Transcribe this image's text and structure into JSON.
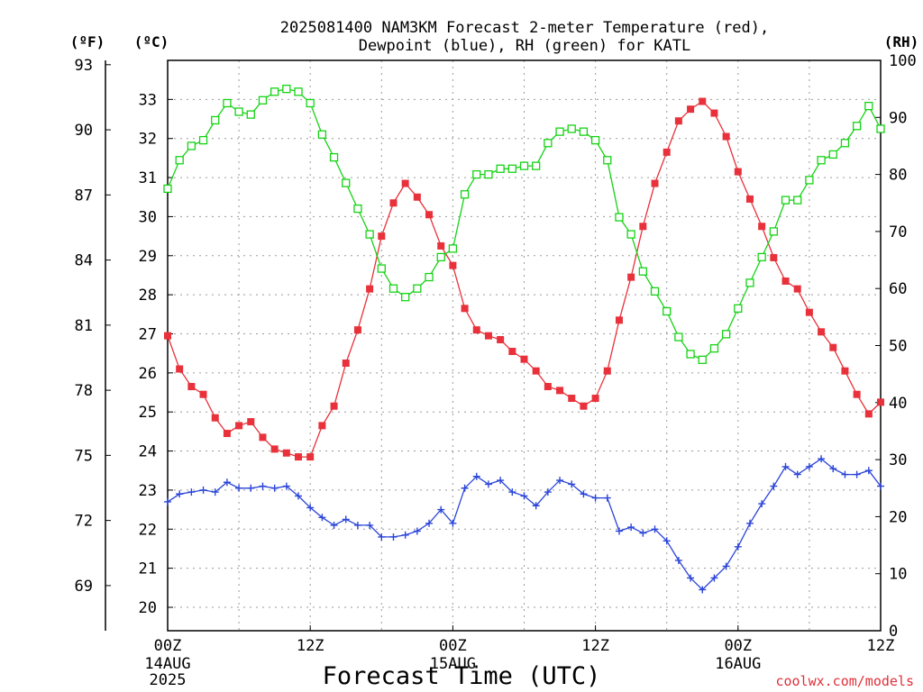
{
  "chart_data": {
    "type": "line",
    "title_line1": "2025081400 NAM3KM Forecast 2-meter Temperature (red),",
    "title_line2": "Dewpoint (blue), RH (green) for KATL",
    "xlabel": "Forecast Time (UTC)",
    "credit": "coolwx.com/models",
    "left_unit_f": "(ºF)",
    "left_unit_c": "(ºC)",
    "right_unit": "(RH)",
    "x_range_hours": [
      0,
      60
    ],
    "celsius_range": [
      19.4,
      34.0
    ],
    "rh_range": [
      0,
      100
    ],
    "fahrenheit_ticks": [
      "93",
      "90",
      "87",
      "84",
      "81",
      "78",
      "75",
      "72",
      "69"
    ],
    "fahrenheit_tick_values": [
      93,
      90,
      87,
      84,
      81,
      78,
      75,
      72,
      69
    ],
    "celsius_ticks": [
      "33",
      "32",
      "31",
      "30",
      "29",
      "28",
      "27",
      "26",
      "25",
      "24",
      "23",
      "22",
      "21",
      "20"
    ],
    "celsius_tick_values": [
      33,
      32,
      31,
      30,
      29,
      28,
      27,
      26,
      25,
      24,
      23,
      22,
      21,
      20
    ],
    "rh_ticks": [
      "100",
      "90",
      "80",
      "70",
      "60",
      "50",
      "40",
      "30",
      "20",
      "10",
      "0"
    ],
    "rh_tick_values": [
      100,
      90,
      80,
      70,
      60,
      50,
      40,
      30,
      20,
      10,
      0
    ],
    "x_ticks": [
      {
        "hour": 0,
        "line1": "00Z",
        "line2": "14AUG",
        "line3": "2025"
      },
      {
        "hour": 12,
        "line1": "12Z",
        "line2": "",
        "line3": ""
      },
      {
        "hour": 24,
        "line1": "00Z",
        "line2": "15AUG",
        "line3": ""
      },
      {
        "hour": 36,
        "line1": "12Z",
        "line2": "",
        "line3": ""
      },
      {
        "hour": 48,
        "line1": "00Z",
        "line2": "16AUG",
        "line3": ""
      },
      {
        "hour": 60,
        "line1": "12Z",
        "line2": "",
        "line3": ""
      }
    ],
    "series": [
      {
        "name": "Temperature",
        "axis": "celsius",
        "color": "#e8313a",
        "marker": "filled-square",
        "values": [
          26.95,
          26.1,
          25.65,
          25.45,
          24.85,
          24.45,
          24.65,
          24.75,
          24.35,
          24.05,
          23.95,
          23.85,
          23.85,
          24.65,
          25.15,
          26.25,
          27.1,
          28.15,
          29.5,
          30.35,
          30.85,
          30.5,
          30.05,
          29.25,
          28.75,
          27.65,
          27.1,
          26.95,
          26.85,
          26.55,
          26.35,
          26.05,
          25.65,
          25.55,
          25.35,
          25.15,
          25.35,
          26.05,
          27.35,
          28.45,
          29.75,
          30.85,
          31.65,
          32.45,
          32.75,
          32.95,
          32.65,
          32.05,
          31.15,
          30.45,
          29.75,
          28.95,
          28.35,
          28.15,
          27.55,
          27.05,
          26.65,
          26.05,
          25.45,
          24.95,
          25.25
        ]
      },
      {
        "name": "Dewpoint",
        "axis": "celsius",
        "color": "#2b45d8",
        "marker": "plus",
        "values": [
          22.7,
          22.9,
          22.95,
          23.0,
          22.95,
          23.2,
          23.05,
          23.05,
          23.1,
          23.05,
          23.1,
          22.85,
          22.55,
          22.3,
          22.1,
          22.25,
          22.1,
          22.1,
          21.8,
          21.8,
          21.85,
          21.95,
          22.15,
          22.5,
          22.15,
          23.05,
          23.35,
          23.15,
          23.25,
          22.95,
          22.85,
          22.6,
          22.95,
          23.25,
          23.15,
          22.9,
          22.8,
          22.8,
          21.95,
          22.05,
          21.9,
          22.0,
          21.7,
          21.2,
          20.75,
          20.45,
          20.75,
          21.05,
          21.55,
          22.15,
          22.65,
          23.1,
          23.6,
          23.4,
          23.6,
          23.8,
          23.55,
          23.4,
          23.4,
          23.5,
          23.1
        ]
      },
      {
        "name": "RH",
        "axis": "rh",
        "color": "#15d315",
        "marker": "open-square",
        "values": [
          77.5,
          82.5,
          85.0,
          86.0,
          89.5,
          92.5,
          91.0,
          90.5,
          93.0,
          94.5,
          95.0,
          94.5,
          92.5,
          87.0,
          83.0,
          78.5,
          74.0,
          69.5,
          63.5,
          60.0,
          58.5,
          60.0,
          62.0,
          65.5,
          67.0,
          76.5,
          80.0,
          80.0,
          81.0,
          81.0,
          81.5,
          81.5,
          85.5,
          87.5,
          88.0,
          87.5,
          86.0,
          82.5,
          72.5,
          69.5,
          63.0,
          59.5,
          56.0,
          51.5,
          48.5,
          47.5,
          49.5,
          52.0,
          56.5,
          61.0,
          65.5,
          70.0,
          75.5,
          75.5,
          79.0,
          82.5,
          83.5,
          85.5,
          88.5,
          92.0,
          88.0
        ]
      }
    ]
  }
}
